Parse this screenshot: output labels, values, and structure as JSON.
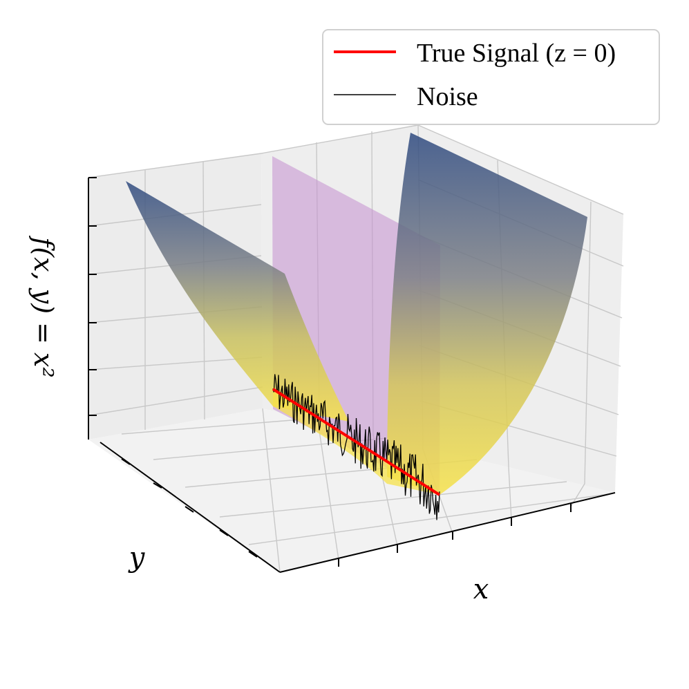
{
  "chart_data": {
    "type": "surface3d",
    "function": "f(x, y) = x^2",
    "surface_colormap": "cividis",
    "xlabel": "x",
    "ylabel": "y",
    "zlabel": "f(x, y) = x^2",
    "zlabel_display": "f(x, y) = x²",
    "legend_position": "top-right",
    "series": [
      {
        "name": "True Signal (z = 0)",
        "color": "#ff0000",
        "kind": "line",
        "z_value": 0
      },
      {
        "name": "Noise",
        "color": "#000000",
        "kind": "line"
      }
    ],
    "plane": {
      "color": "#c58fd0",
      "note_visible": false
    },
    "grid": true,
    "colors": {
      "surface_low": "#f6e24a",
      "surface_high": "#2e4a80",
      "pane": "#ececec",
      "grid": "#c8c8c8"
    }
  }
}
